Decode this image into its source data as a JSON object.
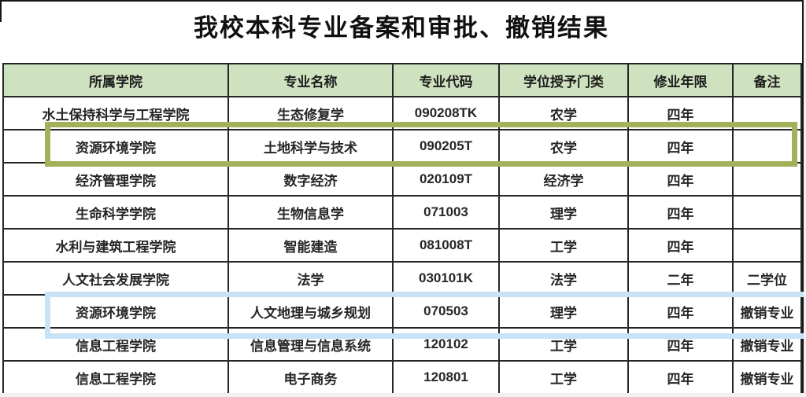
{
  "page": {
    "title": "我校本科专业备案和审批、撤销结果"
  },
  "table": {
    "headers": [
      "所属学院",
      "专业名称",
      "专业代码",
      "学位授予门类",
      "修业年限",
      "备注"
    ],
    "rows": [
      [
        "水土保持科学与工程学院",
        "生态修复学",
        "090208TK",
        "农学",
        "四年",
        ""
      ],
      [
        "资源环境学院",
        "土地科学与技术",
        "090205T",
        "农学",
        "四年",
        ""
      ],
      [
        "经济管理学院",
        "数字经济",
        "020109T",
        "经济学",
        "四年",
        ""
      ],
      [
        "生命科学学院",
        "生物信息学",
        "071003",
        "理学",
        "四年",
        ""
      ],
      [
        "水利与建筑工程学院",
        "智能建造",
        "081008T",
        "工学",
        "四年",
        ""
      ],
      [
        "人文社会发展学院",
        "法学",
        "030101K",
        "法学",
        "二年",
        "二学位"
      ],
      [
        "资源环境学院",
        "人文地理与城乡规划",
        "070503",
        "理学",
        "四年",
        "撤销专业"
      ],
      [
        "信息工程学院",
        "信息管理与信息系统",
        "120102",
        "工学",
        "四年",
        "撤销专业"
      ],
      [
        "信息工程学院",
        "电子商务",
        "120801",
        "工学",
        "四年",
        "撤销专业"
      ]
    ]
  },
  "highlights": {
    "green": {
      "color": "#a2b15a",
      "highlighted_row_index": 1,
      "highlighted_major": "土地科学与技术"
    },
    "blue": {
      "color": "#c9e3f6",
      "highlighted_row_index": 6,
      "highlighted_major": "人文地理与城乡规划"
    }
  },
  "colors": {
    "header_bg": "#cfe2bf",
    "table_border": "#262626",
    "frame_border": "#161616"
  }
}
